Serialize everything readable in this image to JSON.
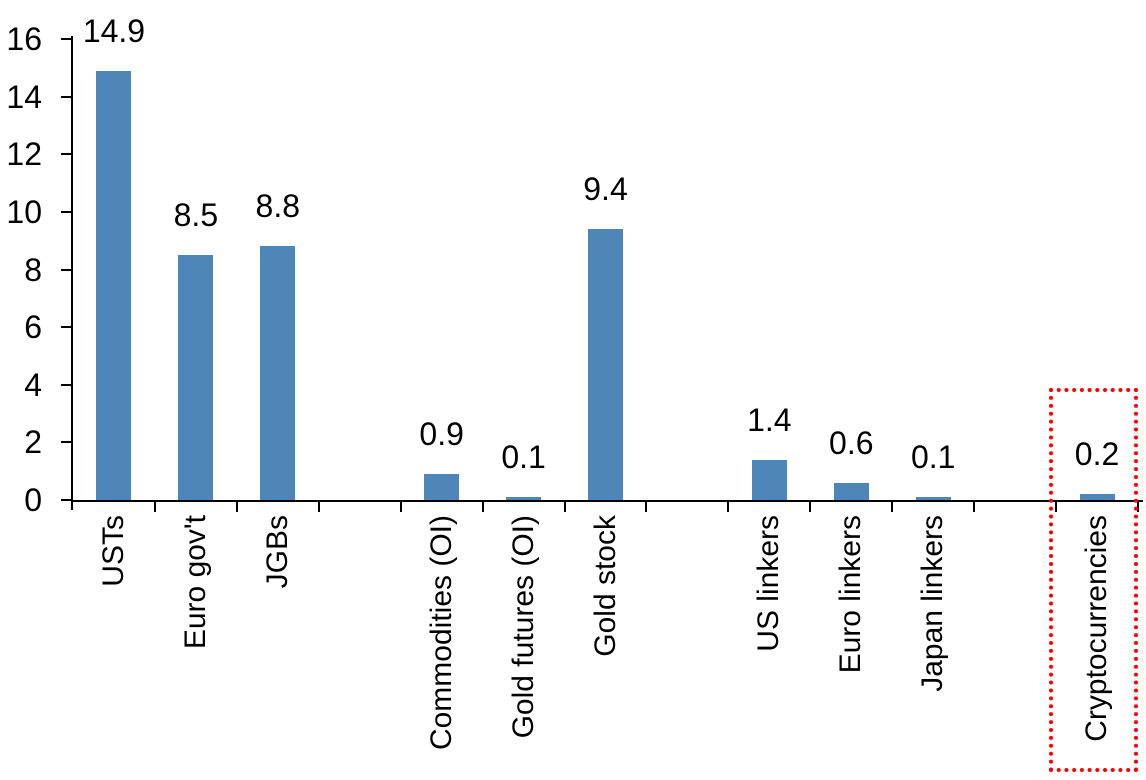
{
  "chart_data": {
    "type": "bar",
    "title": "",
    "xlabel": "",
    "ylabel": "",
    "categories": [
      "USTs",
      "Euro gov't",
      "JGBs",
      "Commodities (OI)",
      "Gold futures (OI)",
      "Gold stock",
      "US linkers",
      "Euro linkers",
      "Japan linkers",
      "Cryptocurrencies"
    ],
    "values": [
      14.9,
      8.5,
      8.8,
      0.9,
      0.1,
      9.4,
      1.4,
      0.6,
      0.1,
      0.2
    ],
    "data_labels": [
      "14.9",
      "8.5",
      "8.8",
      "0.9",
      "0.1",
      "9.4",
      "1.4",
      "0.6",
      "0.1",
      "0.2"
    ],
    "slots": [
      0,
      1,
      2,
      4,
      5,
      6,
      8,
      9,
      10,
      12
    ],
    "total_slots": 13,
    "yticks": [
      0,
      2,
      4,
      6,
      8,
      10,
      12,
      14,
      16
    ],
    "ytick_labels": [
      "0",
      "2",
      "4",
      "6",
      "8",
      "10",
      "12",
      "14",
      "16"
    ],
    "ylim": [
      0,
      16
    ],
    "grid": false,
    "legend": "none",
    "bar_color": "#4e86ba",
    "axis_color": "#000000",
    "text_color": "#000000",
    "highlight": {
      "target": "Cryptocurrencies",
      "shape": "dotted-rectangle",
      "color": "#ff0000"
    }
  }
}
